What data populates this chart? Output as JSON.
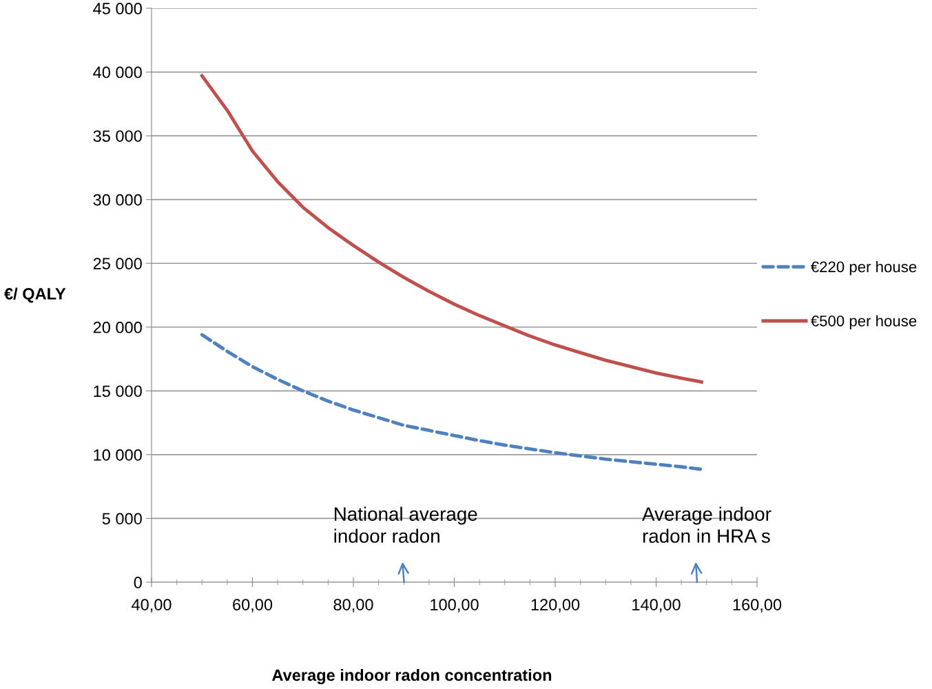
{
  "chart_data": {
    "type": "line",
    "xlabel": "Average indoor radon concentration",
    "ylabel": "€/ QALY",
    "x": [
      50,
      55,
      60,
      65,
      70,
      75,
      80,
      85,
      90,
      95,
      100,
      105,
      110,
      115,
      120,
      125,
      130,
      135,
      140,
      145,
      149
    ],
    "series": [
      {
        "name": "€220 per house",
        "color": "#4f81bd",
        "line_style": "dashed",
        "values": [
          19400,
          18100,
          16900,
          15900,
          15000,
          14200,
          13500,
          12900,
          12300,
          11900,
          11500,
          11100,
          10750,
          10450,
          10150,
          9900,
          9650,
          9450,
          9250,
          9050,
          8850
        ]
      },
      {
        "name": "€500 per house",
        "color": "#c0504d",
        "line_style": "solid",
        "values": [
          39700,
          37000,
          33800,
          31400,
          29400,
          27800,
          26400,
          25100,
          23900,
          22800,
          21800,
          20900,
          20100,
          19300,
          18600,
          18000,
          17400,
          16900,
          16400,
          16000,
          15700
        ]
      }
    ],
    "xlim": [
      40,
      160
    ],
    "xticks": [
      {
        "value": 40,
        "label": "40,00"
      },
      {
        "value": 60,
        "label": "60,00"
      },
      {
        "value": 80,
        "label": "80,00"
      },
      {
        "value": 100,
        "label": "100,00"
      },
      {
        "value": 120,
        "label": "120,00"
      },
      {
        "value": 140,
        "label": "140,00"
      },
      {
        "value": 160,
        "label": "160,00"
      }
    ],
    "ylim": [
      0,
      45000
    ],
    "yticks": [
      {
        "value": 0,
        "label": "0"
      },
      {
        "value": 5000,
        "label": "5 000"
      },
      {
        "value": 10000,
        "label": "10 000"
      },
      {
        "value": 15000,
        "label": "15 000"
      },
      {
        "value": 20000,
        "label": "20 000"
      },
      {
        "value": 25000,
        "label": "25 000"
      },
      {
        "value": 30000,
        "label": "30 000"
      },
      {
        "value": 35000,
        "label": "35 000"
      },
      {
        "value": 40000,
        "label": "40 000"
      },
      {
        "value": 45000,
        "label": "45 000"
      }
    ],
    "annotations": [
      "National average\nindoor radon",
      "Average indoor\nradon in HRA s"
    ],
    "grid": "y",
    "legend": "right",
    "marker": "none"
  }
}
